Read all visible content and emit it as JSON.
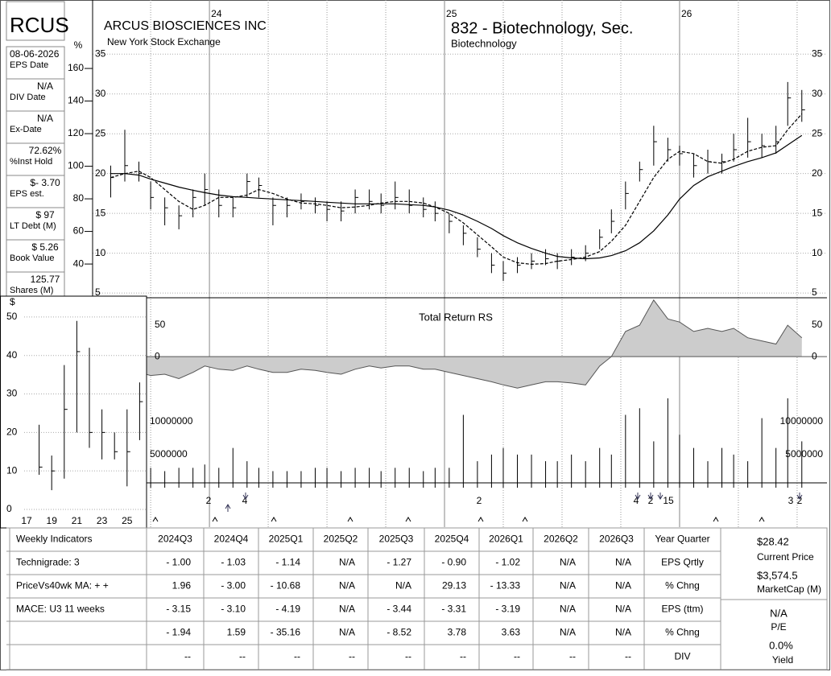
{
  "header": {
    "company": "ARCUS BIOSCIENCES INC",
    "exchange": "New York Stock Exchange",
    "group": "832 - Biotechnology, Sec.",
    "industry": "Biotechnology"
  },
  "sidebar": {
    "ticker": "RCUS",
    "unit": "%",
    "items": [
      {
        "value": "08-06-2026",
        "label": "EPS Date"
      },
      {
        "value": "N/A",
        "label": "DIV Date"
      },
      {
        "value": "N/A",
        "label": "Ex-Date"
      },
      {
        "value": "72.62%",
        "label": "%Inst Hold"
      },
      {
        "value": "$- 3.70",
        "label": "EPS est."
      },
      {
        "value": "$ 97",
        "label": "LT Debt (M)"
      },
      {
        "value": "$ 5.26",
        "label": "Book Value"
      },
      {
        "value": "125.77",
        "label": "Shares (M)"
      }
    ]
  },
  "chart_data": [
    {
      "type": "hlc",
      "x": [
        23.58,
        23.64,
        23.7,
        23.75,
        23.81,
        23.87,
        23.93,
        23.98,
        24.04,
        24.1,
        24.16,
        24.21,
        24.27,
        24.33,
        24.39,
        24.45,
        24.5,
        24.56,
        24.62,
        24.68,
        24.73,
        24.79,
        24.85,
        24.91,
        24.96,
        25.02,
        25.08,
        25.14,
        25.2,
        25.25,
        25.31,
        25.37,
        25.43,
        25.48,
        25.54,
        25.6,
        25.66,
        25.71,
        25.77,
        25.83,
        25.89,
        25.95,
        26.0,
        26.06,
        26.12,
        26.18,
        26.23,
        26.29,
        26.35,
        26.41,
        26.46,
        26.52
      ],
      "high": [
        21,
        25.5,
        21.5,
        19,
        17,
        16,
        18,
        20,
        18,
        17,
        20,
        19.5,
        17,
        17,
        17.5,
        17,
        16.5,
        16.5,
        18,
        18,
        17.5,
        19,
        18,
        17,
        16.5,
        15,
        13.5,
        12,
        10,
        9,
        9.5,
        10,
        10.5,
        10,
        10.5,
        11,
        13,
        15.5,
        19,
        21.5,
        26,
        24.5,
        23.5,
        22.5,
        23,
        22.5,
        25,
        27,
        25,
        26,
        31.5,
        30.5
      ],
      "low": [
        17,
        19,
        19,
        15.5,
        13.5,
        13,
        14.5,
        16,
        14.5,
        14.5,
        17,
        17,
        13.5,
        14.5,
        15.5,
        15,
        14,
        14,
        15,
        15.5,
        15,
        15.5,
        15,
        14.5,
        14,
        12.5,
        11,
        9.5,
        7.5,
        6.5,
        7.5,
        8,
        8.5,
        8,
        8.5,
        9,
        10.5,
        12.5,
        15.5,
        19,
        21,
        21.5,
        21,
        19.5,
        20,
        20,
        21.5,
        22,
        22,
        22.5,
        26,
        26.5
      ],
      "close": [
        19.5,
        21,
        20,
        17,
        15.7,
        14.7,
        17,
        18,
        16,
        15.7,
        19,
        18.5,
        16,
        16,
        16.5,
        16,
        15.5,
        15.3,
        17,
        16.5,
        16,
        17,
        16,
        15.5,
        15,
        14,
        12.5,
        10.5,
        8.5,
        7.5,
        8.5,
        9,
        9.3,
        9,
        9.5,
        10,
        12,
        14,
        17.5,
        20.5,
        24,
        23,
        22.5,
        21,
        21.5,
        21.5,
        23,
        24,
        23.5,
        24,
        29.5,
        28
      ],
      "color": "#000000",
      "series": [
        {
          "color": "#000000",
          "dash": true,
          "values": [
            19.5,
            20,
            20.3,
            19.5,
            18,
            16.5,
            15.5,
            16,
            17,
            17,
            17.3,
            18,
            17.5,
            16.8,
            16.3,
            16.2,
            16,
            15.7,
            15.8,
            16,
            16.3,
            16.5,
            16.5,
            16.3,
            15.8,
            15,
            13.8,
            12.3,
            10.8,
            9.5,
            8.8,
            8.6,
            8.7,
            9,
            9.2,
            9.5,
            10.2,
            11.5,
            13.5,
            16.5,
            19.5,
            21.8,
            22.8,
            22.5,
            21.5,
            21.3,
            21.8,
            22.8,
            23.3,
            23.5,
            25.5,
            27.5
          ]
        },
        {
          "color": "#000000",
          "dash": false,
          "values": [
            20,
            20,
            19.8,
            19.3,
            18.8,
            18.3,
            17.9,
            17.6,
            17.3,
            17.1,
            17,
            16.9,
            16.8,
            16.7,
            16.6,
            16.5,
            16.4,
            16.3,
            16.2,
            16.2,
            16.2,
            16.2,
            16.1,
            16,
            15.8,
            15.4,
            14.8,
            14,
            13.1,
            12.2,
            11.3,
            10.6,
            10,
            9.6,
            9.4,
            9.3,
            9.4,
            9.7,
            10.3,
            11.3,
            12.8,
            14.8,
            16.8,
            18.5,
            19.6,
            20.3,
            20.9,
            21.5,
            22,
            22.6,
            23.6,
            24.8
          ]
        }
      ],
      "xlim": [
        23.503,
        26.627
      ],
      "xticks": [
        24,
        25,
        26
      ],
      "minor_xticks": [
        23.75,
        24.25,
        24.5,
        24.75,
        25.25,
        25.5,
        25.75,
        26.25,
        26.5
      ],
      "ylim": [
        4.4,
        41.8
      ],
      "yticks": [
        5,
        10,
        15,
        20,
        25,
        30,
        35
      ],
      "y2lim": [
        19.3,
        202
      ],
      "y2ticks": [
        40,
        60,
        80,
        100,
        120,
        140,
        160
      ],
      "grid": true
    },
    {
      "type": "area",
      "title": "Total Return RS",
      "values": [
        -10,
        -15,
        -25,
        -30,
        -28,
        -35,
        -25,
        -15,
        -20,
        -22,
        -15,
        -20,
        -25,
        -25,
        -20,
        -22,
        -25,
        -28,
        -20,
        -15,
        -18,
        -15,
        -15,
        -20,
        -20,
        -25,
        -30,
        -35,
        -40,
        -45,
        -50,
        -45,
        -40,
        -40,
        -42,
        -45,
        -15,
        0,
        40,
        50,
        90,
        60,
        55,
        40,
        45,
        40,
        45,
        30,
        25,
        20,
        50,
        30
      ],
      "color": "#cccccc",
      "ylim": [
        -60,
        93.6
      ],
      "yticks": [
        0,
        50
      ]
    },
    {
      "type": "volume",
      "values": [
        4000000,
        3500000,
        3000000,
        3000000,
        2500000,
        3000000,
        3000000,
        3500000,
        3000000,
        6000000,
        4000000,
        3000000,
        2500000,
        2500000,
        2500000,
        3000000,
        3000000,
        2500000,
        3000000,
        3000000,
        2500000,
        3000000,
        3000000,
        2500000,
        3000000,
        3000000,
        11000000,
        4000000,
        5000000,
        6000000,
        5000000,
        5000000,
        4000000,
        4000000,
        5000000,
        4000000,
        6000000,
        5000000,
        11000000,
        12000000,
        7000000,
        13500000,
        8000000,
        6000000,
        4000000,
        6000000,
        5000000,
        4000000,
        10500000,
        6000000,
        13500000,
        7000000
      ],
      "color": "#000000",
      "ylim": [
        0,
        14100000
      ],
      "yticks": [
        5000000,
        10000000
      ],
      "annotations": [
        "2",
        "4",
        "2",
        "4",
        "2",
        "15",
        "3",
        "2"
      ]
    },
    {
      "type": "hlc",
      "unit": "$",
      "categories": [
        "17",
        null,
        "19",
        null,
        "21",
        null,
        "23",
        null,
        "25",
        null
      ],
      "high": [
        null,
        22,
        14,
        37.5,
        49,
        42,
        26,
        20,
        26,
        33
      ],
      "low": [
        null,
        9,
        5,
        8,
        20,
        16,
        13,
        13,
        6,
        18
      ],
      "close": [
        null,
        11,
        10,
        26,
        41,
        20,
        20,
        15,
        15,
        28
      ],
      "color": "#000000",
      "ylim": [
        0,
        55
      ],
      "yticks": [
        0,
        10,
        20,
        30,
        40,
        50
      ],
      "grid": true
    }
  ],
  "table": {
    "header": [
      "Weekly Indicators",
      "2024Q3",
      "2024Q4",
      "2025Q1",
      "2025Q2",
      "2025Q3",
      "2025Q4",
      "2026Q1",
      "2026Q2",
      "2026Q3",
      "Year Quarter"
    ],
    "rows": [
      [
        "Technigrade: 3",
        "- 1.00",
        "- 1.03",
        "- 1.14",
        "N/A",
        "- 1.27",
        "- 0.90",
        "- 1.02",
        "N/A",
        "N/A",
        "EPS Qrtly"
      ],
      [
        "PriceVs40wk MA:  + +",
        "1.96",
        "- 3.00",
        "- 10.68",
        "N/A",
        "N/A",
        "29.13",
        "- 13.33",
        "N/A",
        "N/A",
        "% Chng"
      ],
      [
        "MACE: U3  11 weeks",
        "- 3.15",
        "- 3.10",
        "- 4.19",
        "N/A",
        "- 3.44",
        "- 3.31",
        "- 3.19",
        "N/A",
        "N/A",
        "EPS (ttm)"
      ],
      [
        null,
        "- 1.94",
        "1.59",
        "- 35.16",
        "N/A",
        "- 8.52",
        "3.78",
        "3.63",
        "N/A",
        "N/A",
        "% Chng"
      ],
      [
        null,
        "--",
        "--",
        "--",
        "--",
        "--",
        "--",
        "--",
        "--",
        "--",
        "DIV"
      ]
    ]
  },
  "summary": {
    "price": "$28.42",
    "price_label": "Current Price",
    "market_cap": "$3,574.5",
    "market_cap_label": "MarketCap (M)",
    "pe": "N/A",
    "pe_label": "P/E",
    "yield": "0.0%",
    "yield_label": "Yield"
  }
}
